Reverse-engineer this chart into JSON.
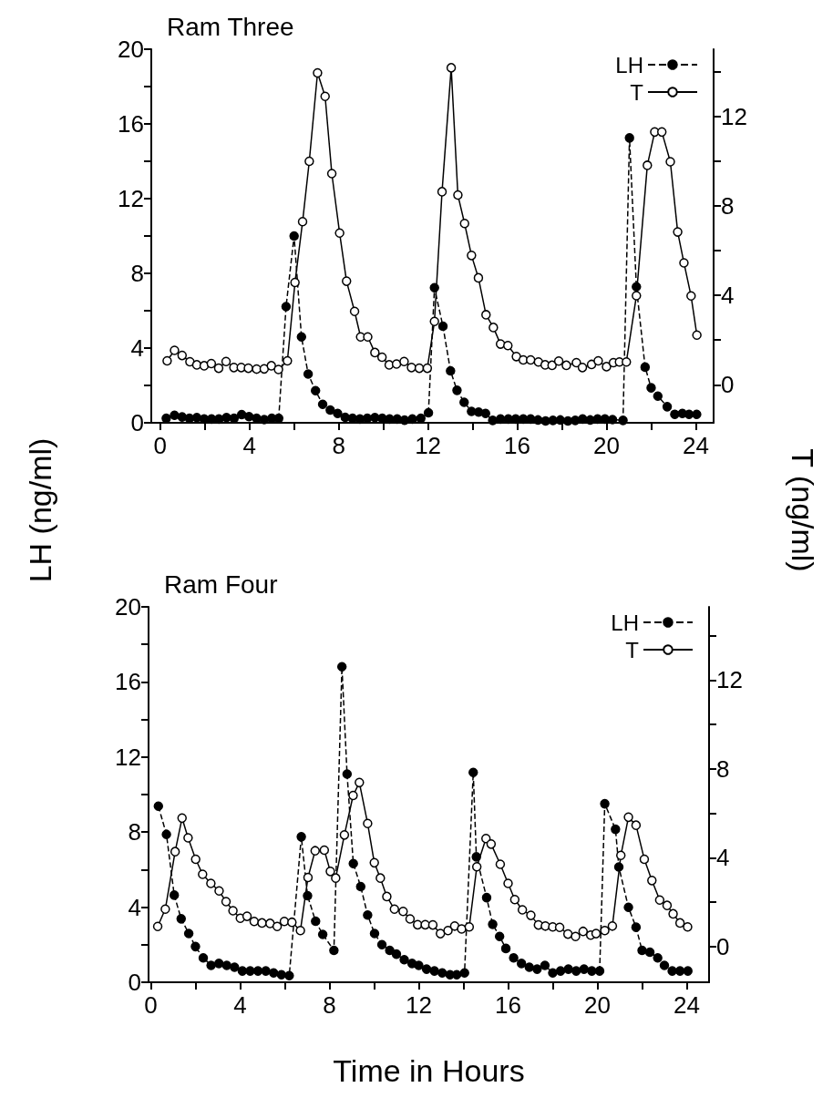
{
  "chart_data": [
    {
      "type": "line",
      "title": "Ram Three",
      "ylabel": "LH (ng/ml)",
      "y2label": "T (ng/ml)",
      "xlim": [
        -0.4,
        24.8
      ],
      "xticks": [
        0,
        {
          "value": 2,
          "label": null
        },
        4,
        {
          "value": 6,
          "label": null
        },
        8,
        {
          "value": 10,
          "label": null
        },
        12,
        {
          "value": 14,
          "label": null
        },
        16,
        {
          "value": 18,
          "label": null
        },
        20,
        {
          "value": 22,
          "label": null
        },
        24
      ],
      "ylim": [
        0,
        20
      ],
      "yticks": [
        0,
        {
          "value": 2,
          "label": null
        },
        4,
        {
          "value": 6,
          "label": null
        },
        8,
        {
          "value": 10,
          "label": null
        },
        12,
        {
          "value": 14,
          "label": null
        },
        16,
        {
          "value": 18,
          "label": null
        },
        20
      ],
      "y2lim": [
        -1.7,
        15
      ],
      "y2ticks": [
        0,
        {
          "value": 2,
          "label": null
        },
        4,
        {
          "value": 6,
          "label": null
        },
        8,
        {
          "value": 10,
          "label": null
        },
        12,
        {
          "value": 14,
          "label": null
        }
      ],
      "grid": false,
      "legend": "top right",
      "series": [
        {
          "name": "LH",
          "color": "#000000",
          "marker": "circle",
          "line_style": "dashed",
          "x": [
            0.27,
            0.64,
            0.98,
            1.31,
            1.64,
            1.97,
            2.3,
            2.63,
            2.97,
            3.31,
            3.65,
            3.98,
            4.32,
            4.66,
            5.0,
            5.31,
            5.64,
            6.0,
            6.33,
            6.63,
            6.96,
            7.28,
            7.62,
            7.95,
            8.29,
            8.62,
            8.95,
            9.28,
            9.62,
            9.95,
            10.28,
            10.62,
            10.95,
            11.3,
            11.68,
            12.02,
            12.29,
            12.67,
            13.01,
            13.3,
            13.62,
            13.95,
            14.27,
            14.58,
            14.9,
            15.25,
            15.6,
            15.93,
            16.27,
            16.6,
            16.93,
            17.27,
            17.6,
            17.93,
            18.27,
            18.6,
            18.93,
            19.27,
            19.6,
            19.93,
            20.27,
            20.74,
            21.03,
            21.34,
            21.73,
            22.0,
            22.3,
            22.72,
            23.06,
            23.4,
            23.7,
            24.04
          ],
          "values": [
            0.24,
            0.4,
            0.31,
            0.24,
            0.28,
            0.2,
            0.2,
            0.2,
            0.28,
            0.24,
            0.44,
            0.33,
            0.24,
            0.17,
            0.24,
            0.24,
            6.22,
            10.0,
            4.6,
            2.61,
            1.72,
            0.99,
            0.68,
            0.5,
            0.29,
            0.24,
            0.2,
            0.24,
            0.28,
            0.24,
            0.2,
            0.2,
            0.14,
            0.2,
            0.24,
            0.54,
            7.23,
            5.17,
            2.78,
            1.74,
            1.1,
            0.61,
            0.57,
            0.5,
            0.13,
            0.2,
            0.2,
            0.2,
            0.2,
            0.2,
            0.15,
            0.1,
            0.13,
            0.15,
            0.1,
            0.13,
            0.2,
            0.15,
            0.2,
            0.2,
            0.17,
            0.13,
            15.25,
            7.28,
            2.98,
            1.87,
            1.43,
            0.86,
            0.45,
            0.5,
            0.45,
            0.45
          ]
        },
        {
          "name": "T",
          "color": "#000000",
          "marker": "circle",
          "line_style": "solid",
          "axis": "y2",
          "x": [
            0.31,
            0.64,
            0.98,
            1.33,
            1.64,
            1.97,
            2.29,
            2.62,
            2.95,
            3.3,
            3.63,
            3.95,
            4.32,
            4.66,
            4.98,
            5.3,
            5.7,
            6.04,
            6.38,
            6.68,
            7.05,
            7.39,
            7.69,
            8.04,
            8.35,
            8.71,
            8.98,
            9.3,
            9.62,
            9.94,
            10.26,
            10.59,
            10.93,
            11.26,
            11.61,
            11.97,
            12.29,
            12.63,
            13.04,
            13.34,
            13.64,
            13.95,
            14.26,
            14.6,
            14.93,
            15.25,
            15.58,
            15.96,
            16.27,
            16.6,
            16.95,
            17.25,
            17.56,
            17.86,
            18.2,
            18.65,
            18.92,
            19.33,
            19.63,
            20.0,
            20.31,
            20.58,
            20.89,
            21.34,
            21.83,
            22.16,
            22.48,
            22.86,
            23.19,
            23.47,
            23.79,
            24.05
          ],
          "values": [
            1.07,
            1.54,
            1.31,
            1.03,
            0.89,
            0.85,
            0.95,
            0.74,
            1.04,
            0.77,
            0.77,
            0.74,
            0.7,
            0.71,
            0.85,
            0.68,
            1.07,
            4.57,
            7.29,
            9.99,
            13.94,
            12.89,
            9.44,
            6.78,
            4.63,
            3.28,
            2.14,
            2.14,
            1.44,
            1.23,
            0.89,
            0.93,
            1.04,
            0.77,
            0.74,
            0.74,
            2.83,
            8.63,
            14.17,
            8.48,
            7.21,
            5.78,
            4.78,
            3.13,
            2.56,
            1.82,
            1.75,
            1.26,
            1.11,
            1.11,
            1.02,
            0.89,
            0.87,
            1.06,
            0.87,
            0.99,
            0.77,
            0.91,
            1.07,
            0.81,
            0.99,
            1.02,
            1.02,
            3.98,
            9.81,
            11.3,
            11.3,
            9.97,
            6.83,
            5.45,
            3.97,
            2.22
          ]
        }
      ]
    },
    {
      "type": "line",
      "title": "Ram Four",
      "xlabel": "Time    in    Hours",
      "xlim": [
        -0.1,
        25
      ],
      "xticks": [
        0,
        {
          "value": 2,
          "label": null
        },
        4,
        {
          "value": 6,
          "label": null
        },
        8,
        {
          "value": 10,
          "label": null
        },
        12,
        {
          "value": 14,
          "label": null
        },
        16,
        {
          "value": 18,
          "label": null
        },
        20,
        {
          "value": 22,
          "label": null
        },
        24
      ],
      "ylim": [
        0,
        20
      ],
      "yticks": [
        0,
        {
          "value": 2,
          "label": null
        },
        4,
        {
          "value": 6,
          "label": null
        },
        8,
        {
          "value": 10,
          "label": null
        },
        12,
        {
          "value": 14,
          "label": null
        },
        16,
        {
          "value": 18,
          "label": null
        },
        20
      ],
      "y2lim": [
        -1.6,
        15.3
      ],
      "y2ticks": [
        0,
        {
          "value": 2,
          "label": null
        },
        4,
        {
          "value": 6,
          "label": null
        },
        8,
        {
          "value": 10,
          "label": null
        },
        12,
        {
          "value": 14,
          "label": null
        }
      ],
      "grid": false,
      "legend": "top right",
      "series": [
        {
          "name": "LH",
          "color": "#000000",
          "marker": "circle",
          "line_style": "dashed",
          "x": [
            0.34,
            0.7,
            1.05,
            1.36,
            1.7,
            2.0,
            2.35,
            2.7,
            3.05,
            3.4,
            3.75,
            4.1,
            4.45,
            4.8,
            5.15,
            5.5,
            5.85,
            6.2,
            6.74,
            7.02,
            7.38,
            7.7,
            8.2,
            8.56,
            8.79,
            9.07,
            9.4,
            9.71,
            10.02,
            10.35,
            10.7,
            11.0,
            11.35,
            11.7,
            12.0,
            12.35,
            12.7,
            13.05,
            13.4,
            13.7,
            14.05,
            14.44,
            14.58,
            15.04,
            15.31,
            15.62,
            15.9,
            16.25,
            16.6,
            16.95,
            17.3,
            17.65,
            18.0,
            18.35,
            18.7,
            19.05,
            19.4,
            19.75,
            20.1,
            20.33,
            20.81,
            20.96,
            21.39,
            21.73,
            22.0,
            22.35,
            22.7,
            23.0,
            23.35,
            23.7,
            24.05
          ],
          "values": [
            9.38,
            7.88,
            4.64,
            3.38,
            2.6,
            1.9,
            1.3,
            0.9,
            1.0,
            0.9,
            0.8,
            0.6,
            0.6,
            0.6,
            0.6,
            0.5,
            0.4,
            0.35,
            7.75,
            4.61,
            3.25,
            2.55,
            1.7,
            16.81,
            11.09,
            6.32,
            5.1,
            3.58,
            2.6,
            2.0,
            1.7,
            1.5,
            1.2,
            1.0,
            0.9,
            0.7,
            0.6,
            0.5,
            0.4,
            0.4,
            0.5,
            11.18,
            6.68,
            4.51,
            3.09,
            2.44,
            1.8,
            1.3,
            1.0,
            0.8,
            0.7,
            0.9,
            0.5,
            0.6,
            0.7,
            0.6,
            0.7,
            0.6,
            0.6,
            9.51,
            8.15,
            6.14,
            3.99,
            2.93,
            1.7,
            1.6,
            1.3,
            0.9,
            0.6,
            0.6,
            0.6
          ]
        },
        {
          "name": "T",
          "color": "#000000",
          "marker": "circle",
          "line_style": "solid",
          "axis": "y2",
          "x": [
            0.31,
            0.65,
            1.09,
            1.4,
            1.67,
            2.01,
            2.32,
            2.69,
            3.06,
            3.37,
            3.68,
            4.01,
            4.31,
            4.63,
            4.98,
            5.34,
            5.66,
            5.98,
            6.32,
            6.7,
            7.04,
            7.36,
            7.77,
            8.04,
            8.28,
            8.67,
            9.06,
            9.34,
            9.71,
            10.01,
            10.28,
            10.57,
            10.91,
            11.3,
            11.61,
            11.95,
            12.29,
            12.63,
            12.97,
            13.31,
            13.61,
            13.92,
            14.26,
            14.6,
            15.01,
            15.24,
            15.65,
            16.0,
            16.3,
            16.64,
            17.02,
            17.36,
            17.67,
            18.0,
            18.31,
            18.68,
            19.02,
            19.36,
            19.7,
            19.94,
            20.33,
            20.67,
            21.05,
            21.39,
            21.73,
            22.1,
            22.44,
            22.79,
            23.12,
            23.39,
            23.7,
            24.04
          ],
          "values": [
            0.91,
            1.69,
            4.28,
            5.79,
            4.9,
            3.94,
            3.26,
            2.85,
            2.51,
            2.03,
            1.62,
            1.28,
            1.37,
            1.14,
            1.07,
            1.05,
            0.91,
            1.14,
            1.1,
            0.73,
            3.12,
            4.32,
            4.35,
            3.39,
            3.09,
            5.03,
            6.81,
            7.39,
            5.55,
            3.78,
            3.09,
            2.26,
            1.69,
            1.59,
            1.25,
            0.99,
            0.99,
            0.98,
            0.59,
            0.73,
            0.93,
            0.8,
            0.89,
            3.6,
            4.87,
            4.62,
            3.71,
            2.85,
            2.12,
            1.66,
            1.41,
            0.98,
            0.93,
            0.89,
            0.87,
            0.57,
            0.46,
            0.69,
            0.52,
            0.59,
            0.73,
            0.93,
            4.11,
            5.83,
            5.47,
            3.94,
            2.98,
            2.1,
            1.86,
            1.48,
            1.07,
            0.89
          ]
        }
      ]
    }
  ]
}
